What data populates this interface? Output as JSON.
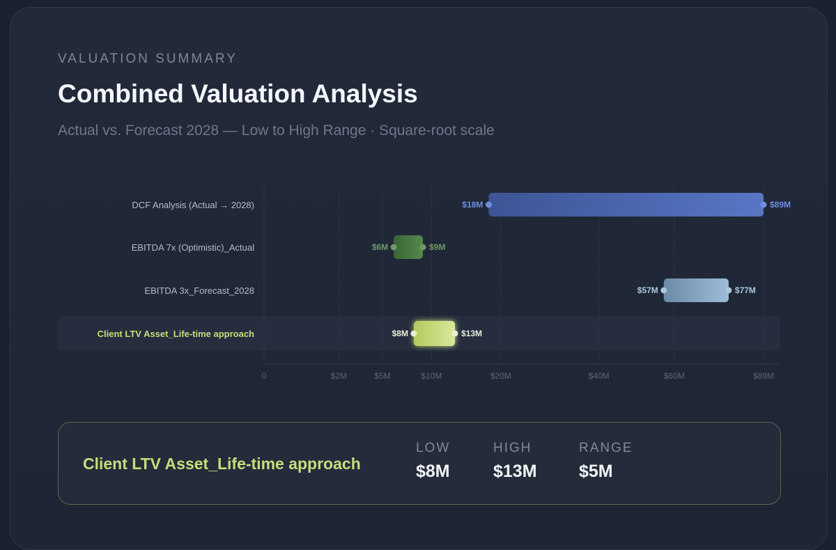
{
  "header": {
    "eyebrow": "VALUATION SUMMARY",
    "title": "Combined Valuation Analysis",
    "subtitle": "Actual vs. Forecast 2028 — Low to High Range · Square-root scale"
  },
  "chart_data": {
    "type": "bar",
    "subtype": "floating-range",
    "scale": "sqrt",
    "xlim": [
      0,
      89
    ],
    "unit": "$M",
    "grid": true,
    "x_ticks": [
      {
        "value": 0,
        "label": "0"
      },
      {
        "value": 2,
        "label": "$2M"
      },
      {
        "value": 5,
        "label": "$5M"
      },
      {
        "value": 10,
        "label": "$10M"
      },
      {
        "value": 20,
        "label": "$20M"
      },
      {
        "value": 40,
        "label": "$40M"
      },
      {
        "value": 60,
        "label": "$60M"
      },
      {
        "value": 89,
        "label": "$89M"
      }
    ],
    "series": [
      {
        "category": "DCF Analysis (Actual → 2028)",
        "low": 18,
        "high": 89,
        "low_label": "$18M",
        "high_label": "$89M",
        "color_start": "#3d5596",
        "color_end": "#5876c4",
        "label_color": "#6f8fdc",
        "highlight": false
      },
      {
        "category": "EBITDA 7x (Optimistic)_Actual",
        "low": 6,
        "high": 9,
        "low_label": "$6M",
        "high_label": "$9M",
        "color_start": "#3a6436",
        "color_end": "#548a4d",
        "label_color": "#6f9a67",
        "highlight": false
      },
      {
        "category": "EBITDA 3x_Forecast_2028",
        "low": 57,
        "high": 77,
        "low_label": "$57M",
        "high_label": "$77M",
        "color_start": "#6b8aa6",
        "color_end": "#9cbdd8",
        "label_color": "#a9c8df",
        "highlight": false
      },
      {
        "category": "Client LTV Asset_Life-time approach",
        "low": 8,
        "high": 13,
        "low_label": "$8M",
        "high_label": "$13M",
        "color_start": "#b4c95e",
        "color_end": "#d8e99a",
        "label_color": "#e8edd8",
        "highlight": true
      }
    ]
  },
  "summary": {
    "name": "Client LTV Asset_Life-time approach",
    "low_label": "LOW",
    "low_value": "$8M",
    "high_label": "HIGH",
    "high_value": "$13M",
    "range_label": "RANGE",
    "range_value": "$5M"
  }
}
